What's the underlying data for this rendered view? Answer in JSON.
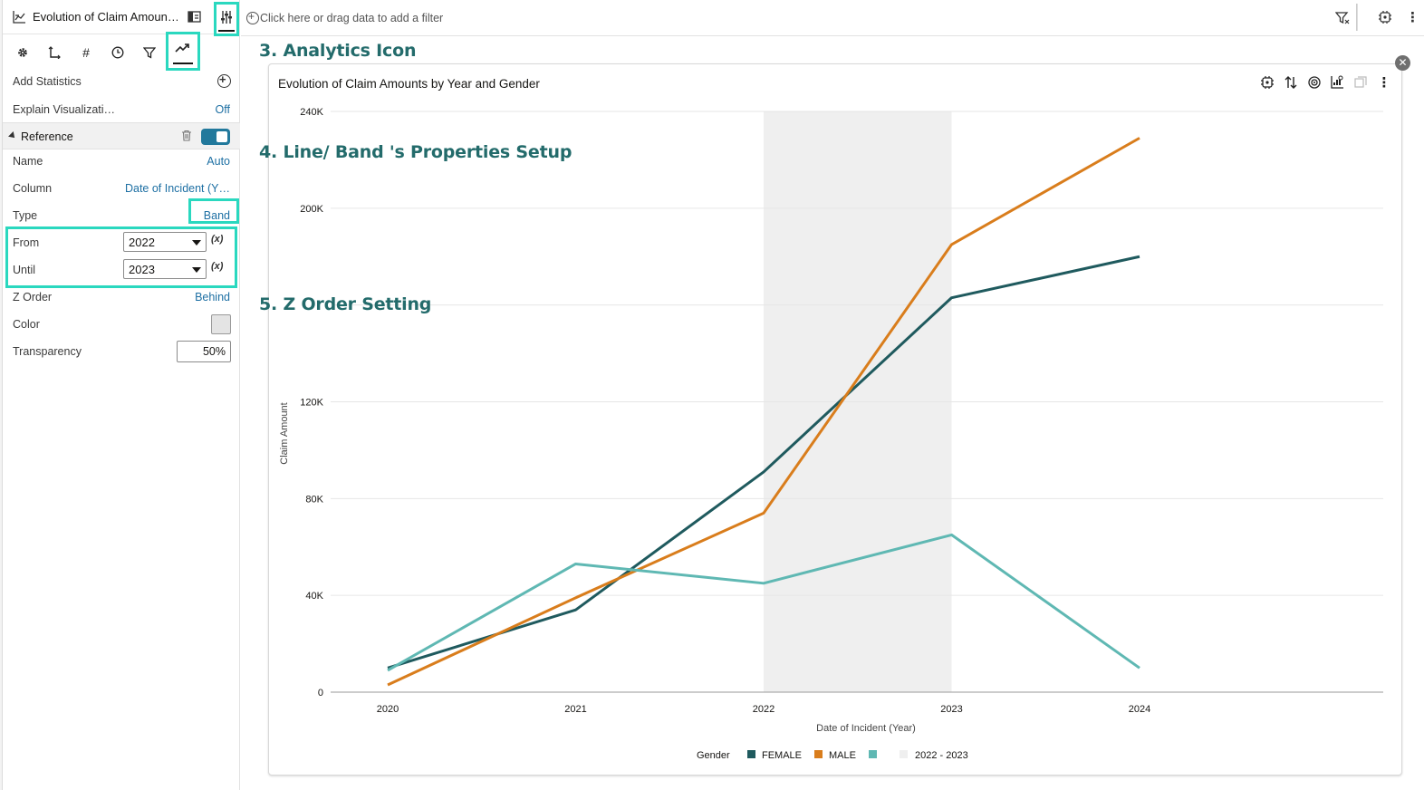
{
  "viz_header": {
    "title": "Evolution of Claim Amoun…"
  },
  "properties": {
    "add_statistics": "Add Statistics",
    "explain_label": "Explain Visualizati…",
    "explain_value": "Off",
    "reference_label": "Reference",
    "name_label": "Name",
    "name_value": "Auto",
    "column_label": "Column",
    "column_value": "Date of Incident (Y…",
    "type_label": "Type",
    "type_value": "Band",
    "from_label": "From",
    "from_value": "2022",
    "until_label": "Until",
    "until_value": "2023",
    "fx_label": "(x)",
    "zorder_label": "Z Order",
    "zorder_value": "Behind",
    "color_label": "Color",
    "transparency_label": "Transparency",
    "transparency_value": "50%",
    "reference_enabled": true
  },
  "filter_bar": {
    "hint": "Click here or drag data to add a filter"
  },
  "annotations": {
    "a3": "3.  Analytics Icon",
    "a4": "4. Line/ Band 's Properties Setup",
    "a5": "5.  Z Order Setting"
  },
  "icons": {
    "viz_type": "line-chart-icon",
    "layout": "layout-icon",
    "properties": "sliders-icon",
    "tab_general": "gear-icon",
    "tab_axis": "axis-icon",
    "tab_values": "hash-icon",
    "tab_date": "clock-icon",
    "tab_filter": "funnel-icon",
    "tab_analytics": "trend-icon"
  },
  "chart_data": {
    "type": "line",
    "title": "Evolution of Claim Amounts by Year and Gender",
    "xlabel": "Date of Incident (Year)",
    "ylabel": "Claim Amount",
    "x": [
      "2020",
      "2021",
      "2022",
      "2023",
      "2024"
    ],
    "ylim": [
      0,
      240000
    ],
    "yticks": [
      0,
      40000,
      80000,
      120000,
      160000,
      200000,
      240000
    ],
    "ytick_labels": [
      "0",
      "40K",
      "80K",
      "120K",
      "",
      "200K",
      "240K"
    ],
    "grid": true,
    "legend_title": "Gender",
    "legend_position": "bottom",
    "series": [
      {
        "name": "FEMALE",
        "color": "#1f5a5e",
        "values": [
          10000,
          34000,
          91000,
          163000,
          180000
        ]
      },
      {
        "name": "MALE",
        "color": "#d97d1c",
        "values": [
          3000,
          39000,
          74000,
          185000,
          229000
        ]
      },
      {
        "name": "",
        "color": "#5fb8b3",
        "values": [
          9000,
          53000,
          45000,
          65000,
          10000
        ]
      }
    ],
    "band": {
      "label": "2022 - 2023",
      "from": "2022",
      "until": "2023",
      "color": "#efefef"
    }
  }
}
